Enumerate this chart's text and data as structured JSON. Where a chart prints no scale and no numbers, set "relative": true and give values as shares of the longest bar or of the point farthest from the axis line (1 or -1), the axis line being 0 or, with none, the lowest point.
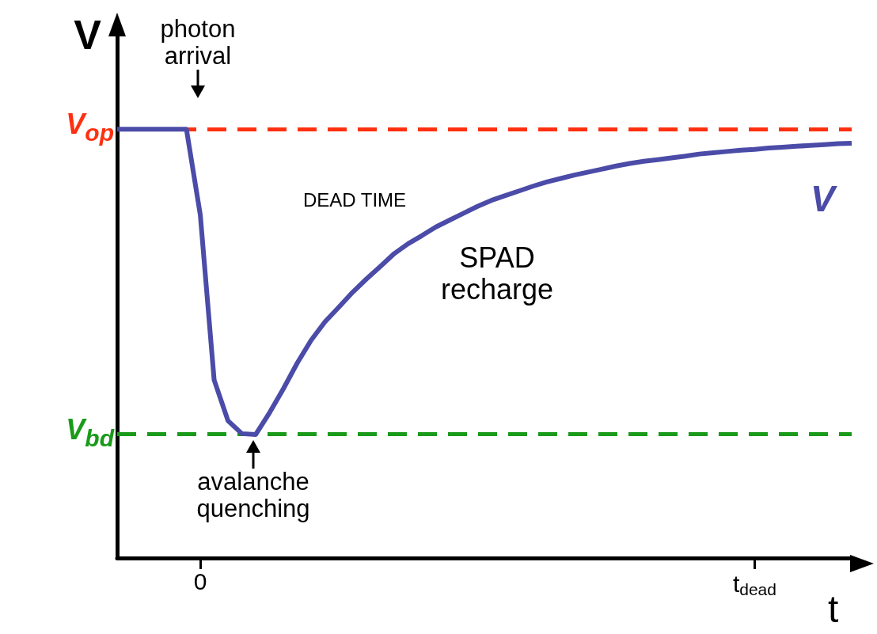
{
  "chart_data": {
    "type": "line",
    "relative": true,
    "xlabel": "t",
    "ylabel": "V",
    "categories": [
      null,
      null,
      null,
      null,
      null,
      null,
      "0",
      null,
      null,
      null,
      null,
      null,
      null,
      null,
      null,
      null,
      null,
      null,
      null,
      null,
      null,
      null,
      null,
      null,
      null,
      null,
      null,
      null,
      null,
      null,
      null,
      null,
      null,
      null,
      null,
      null,
      null,
      null,
      null,
      null,
      null,
      null,
      null,
      null,
      null,
      null,
      "t$_{dead}$",
      null,
      null,
      null,
      null,
      null,
      null,
      null
    ],
    "series": [
      {
        "name": "V",
        "color": "#4b4ba8",
        "values": [
          1,
          1,
          1,
          1,
          1,
          1,
          0.8,
          0.415,
          0.32,
          0.29,
          0.288,
          0.339,
          0.395,
          0.455,
          0.508,
          0.551,
          0.585,
          0.62,
          0.651,
          0.68,
          0.71,
          0.733,
          0.752,
          0.772,
          0.788,
          0.804,
          0.82,
          0.834,
          0.845,
          0.856,
          0.867,
          0.877,
          0.885,
          0.893,
          0.9,
          0.907,
          0.914,
          0.92,
          0.925,
          0.929,
          0.933,
          0.937,
          0.942,
          0.945,
          0.948,
          0.951,
          0.953,
          0.956,
          0.958,
          0.96,
          0.962,
          0.964,
          0.966,
          0.967
        ]
      }
    ],
    "ref_lines": [
      {
        "axis": "y",
        "value": 1,
        "label": "V$_{op}$",
        "color": "#ff3010",
        "line_style": "dashed"
      },
      {
        "axis": "y",
        "value": 0.288,
        "label": "V$_{bd}$",
        "color": "#1a9a1a",
        "line_style": "dashed"
      }
    ],
    "annotations": [
      "photon arrival",
      "avalanche quenching",
      "DEAD TIME",
      "SPAD recharge"
    ]
  }
}
